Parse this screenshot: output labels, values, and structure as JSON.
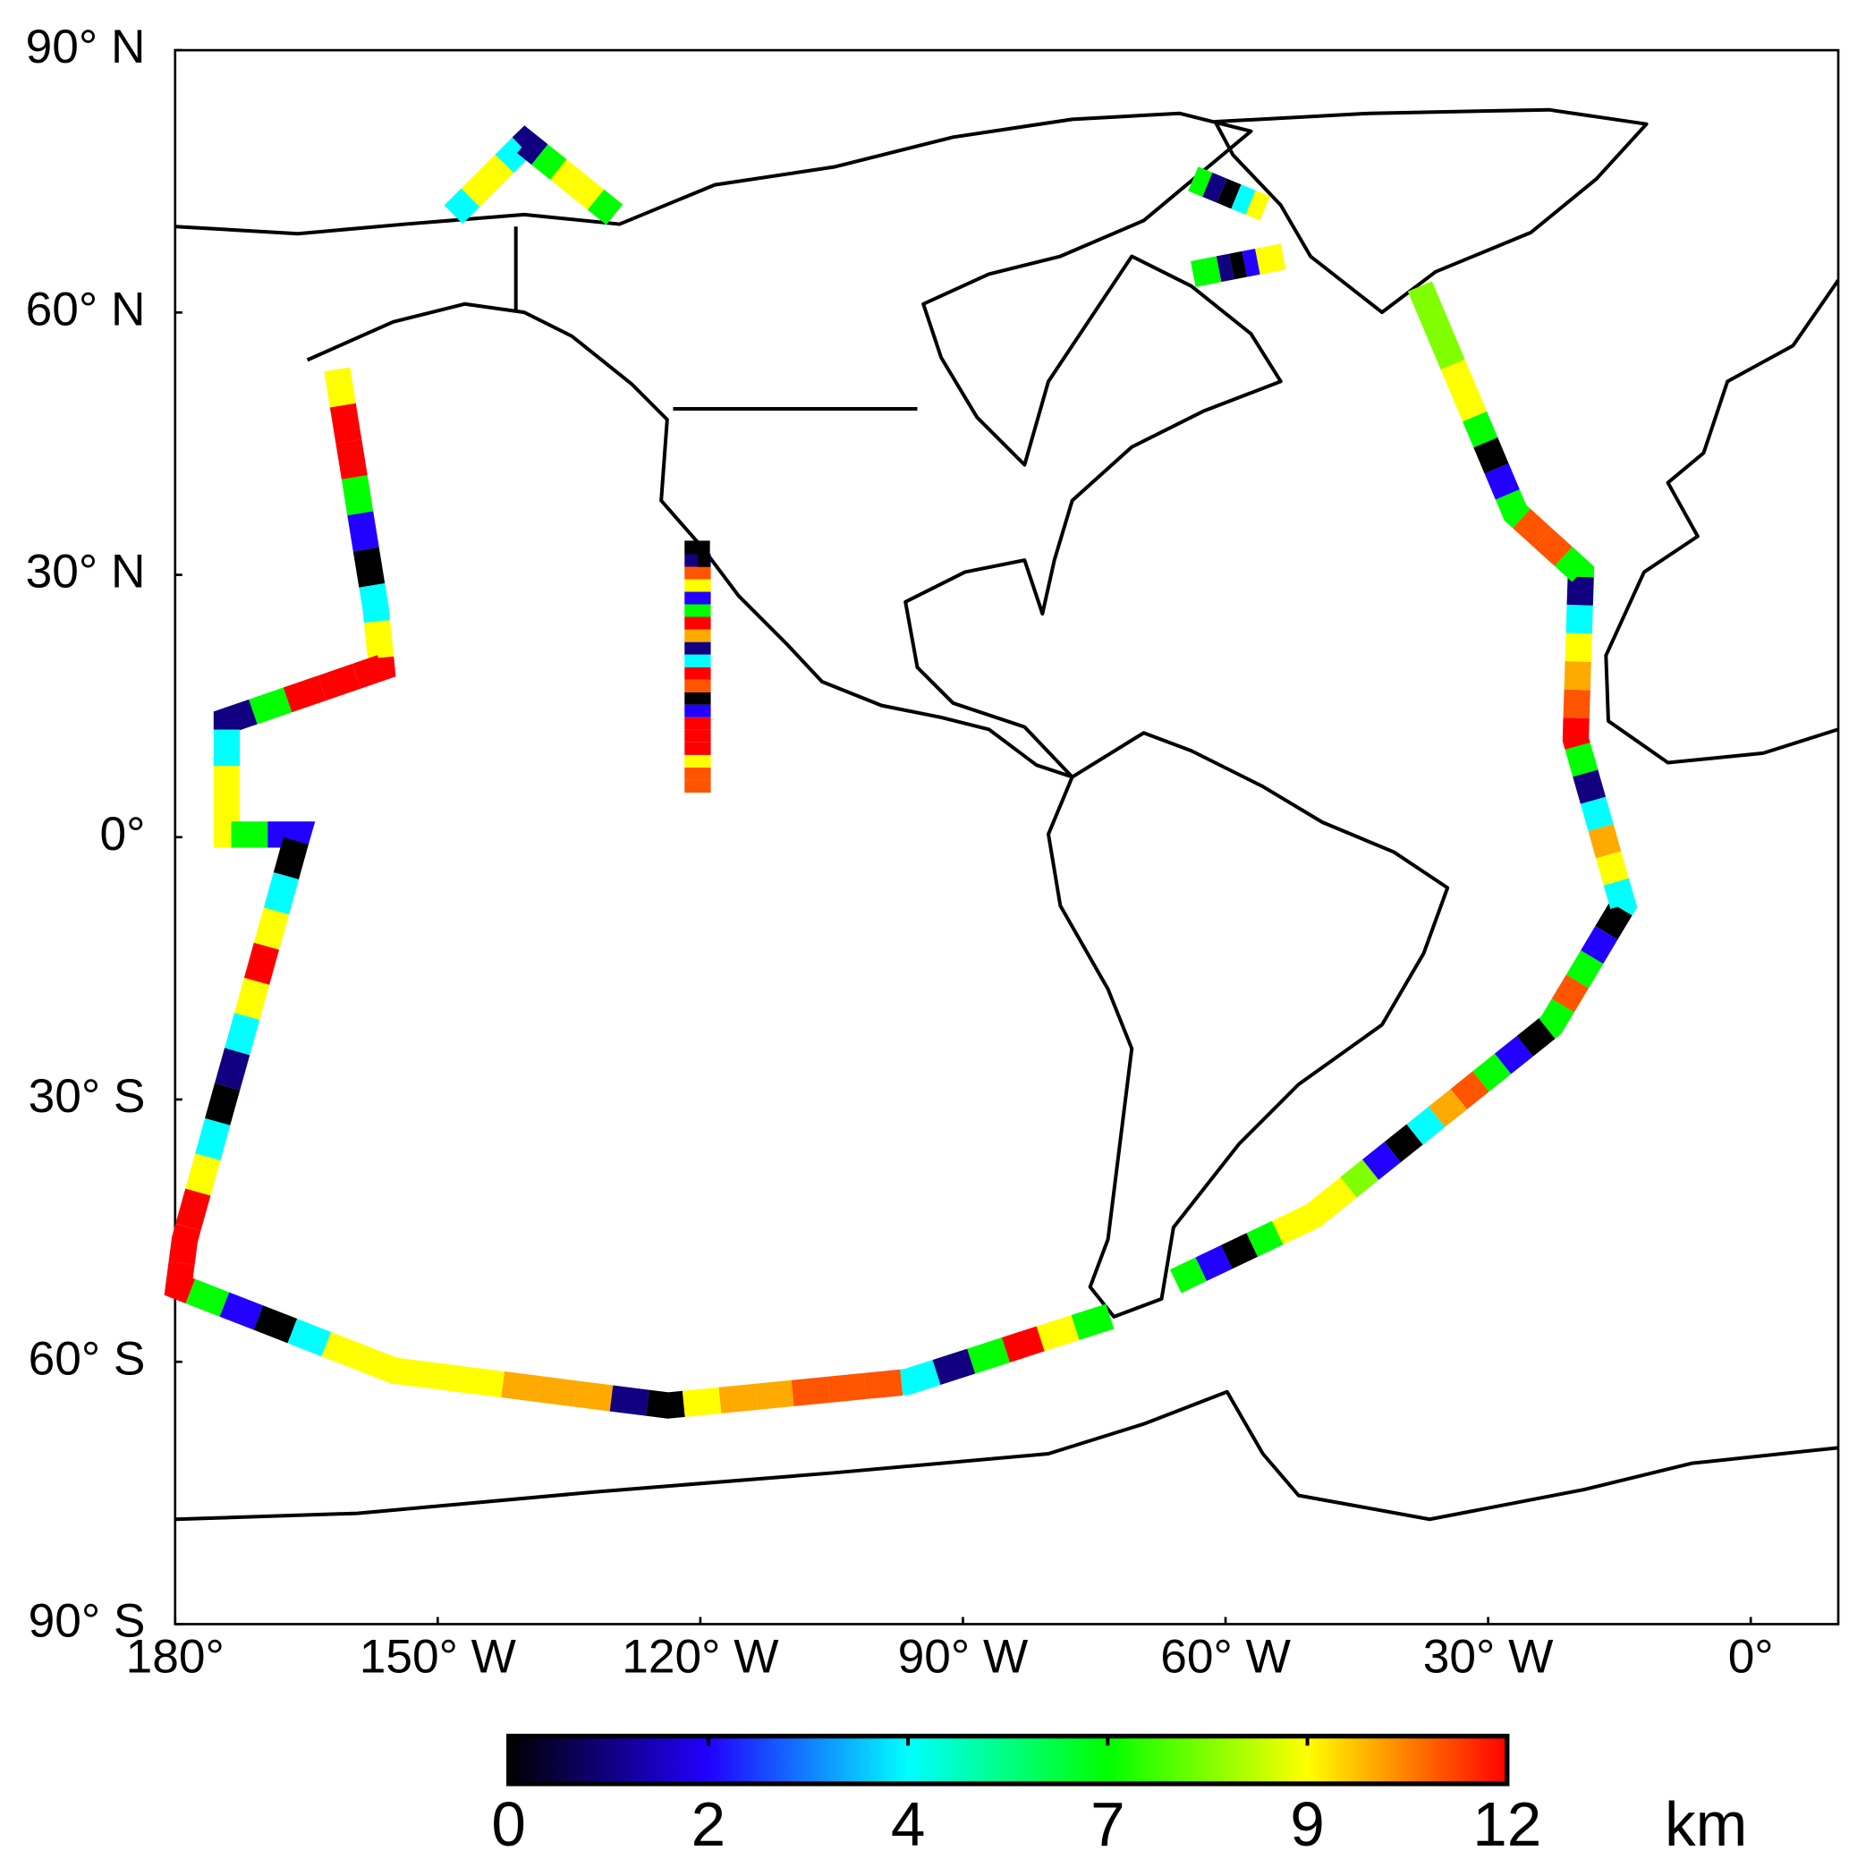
{
  "chart_data": {
    "type": "map",
    "xlim": [
      -180,
      10
    ],
    "ylim": [
      -90,
      90
    ],
    "xticks": [
      {
        "value": -180,
        "label": "180°"
      },
      {
        "value": -150,
        "label": "150° W"
      },
      {
        "value": -120,
        "label": "120° W"
      },
      {
        "value": -90,
        "label": "90° W"
      },
      {
        "value": -60,
        "label": "60° W"
      },
      {
        "value": -30,
        "label": "30° W"
      },
      {
        "value": 0,
        "label": "0°"
      }
    ],
    "yticks": [
      {
        "value": 90,
        "label": "90° N"
      },
      {
        "value": 60,
        "label": "60° N"
      },
      {
        "value": 30,
        "label": "30° N"
      },
      {
        "value": 0,
        "label": "0°"
      },
      {
        "value": -30,
        "label": "30° S"
      },
      {
        "value": -60,
        "label": "60° S"
      },
      {
        "value": -90,
        "label": "90° S"
      }
    ],
    "colorbar": {
      "ticks": [
        0,
        2,
        4,
        7,
        9,
        12
      ],
      "colors": [
        "#000000",
        "#2200ff",
        "#00ffff",
        "#00ff00",
        "#ffff00",
        "#ff0000"
      ],
      "label": "km"
    },
    "tracks": [
      {
        "lon": [
          -161.5,
          -157.1,
          -156.4,
          -174.1,
          -174.1,
          -166,
          -178.9,
          -179.6,
          -155,
          -123.7,
          -96.4,
          -73.2
        ],
        "lat": [
          53.5,
          26.2,
          19.4,
          13.3,
          0.3,
          0.3,
          -46,
          -51.4,
          -61,
          -65,
          -62.3,
          -54.8
        ],
        "alt": [
          9,
          12,
          12,
          7,
          2,
          0,
          4,
          9,
          12,
          12,
          12,
          7,
          1,
          4,
          9,
          9,
          7,
          2,
          0,
          4,
          9,
          12,
          9,
          4,
          1,
          0,
          4,
          9,
          12,
          12,
          12,
          7,
          2,
          0,
          4,
          9,
          9,
          9,
          9,
          9,
          10,
          10,
          10,
          1,
          0,
          9,
          10,
          10,
          11,
          11,
          11,
          4,
          1,
          7,
          12,
          9,
          7
        ]
      },
      {
        "lon": [
          -65.7,
          -50,
          -22.8,
          -14.6,
          -20,
          -19.4,
          -26.9,
          -37.8
        ],
        "lat": [
          -50.8,
          -43.3,
          -21.5,
          -7.8,
          11.2,
          30.3,
          37.1,
          63
        ],
        "alt": [
          7,
          2,
          0,
          7,
          9,
          9,
          9,
          8,
          2,
          0,
          4,
          10,
          11,
          7,
          2,
          0,
          7,
          11,
          7,
          2,
          0,
          4,
          9,
          10,
          4,
          1,
          7,
          12,
          11,
          10,
          9,
          4,
          1,
          7,
          11,
          11,
          7,
          2,
          0,
          7,
          9,
          9,
          8,
          8,
          8
        ]
      },
      {
        "lon": [
          -120.3,
          -120.3,
          -118.9
        ],
        "lat": [
          5.1,
          32.4,
          32.4
        ],
        "alt": [
          11,
          11,
          9,
          12,
          12,
          12,
          2,
          0,
          11,
          12,
          4,
          1,
          10,
          12,
          7,
          2,
          9,
          11,
          1,
          0
        ]
      },
      {
        "lon": [
          -148.2,
          -140,
          -129.8
        ],
        "lat": [
          71.2,
          79.4,
          71.2
        ],
        "alt": [
          4,
          9,
          9,
          4,
          1,
          7,
          9,
          9,
          7
        ]
      },
      {
        "lon": [
          -63.7,
          -55.5
        ],
        "lat": [
          75.3,
          71.9
        ],
        "alt": [
          7,
          1,
          0,
          4,
          9
        ]
      },
      {
        "lon": [
          -63.7,
          -53.4
        ],
        "lat": [
          64.4,
          66.4
        ],
        "alt": [
          7,
          7,
          1,
          0,
          2,
          9,
          9
        ]
      }
    ]
  }
}
